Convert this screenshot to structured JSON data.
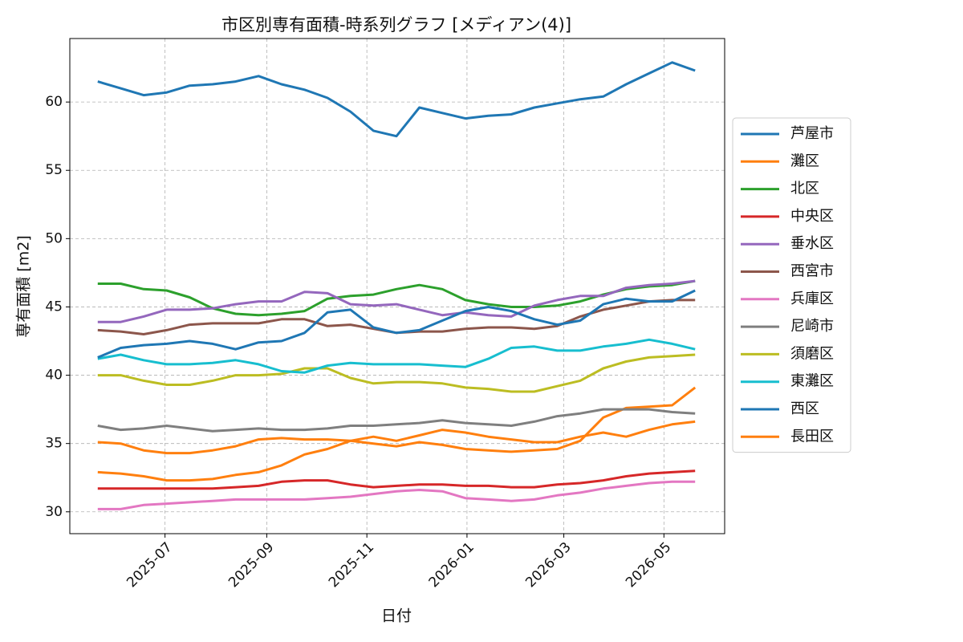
{
  "chart_data": {
    "type": "line",
    "title": "市区別専有面積-時系列グラフ [メディアン(4)]",
    "x_label": "日付",
    "y_label": "専有面積 [m2]",
    "x": [
      "2025-05-21",
      "2025-06-04",
      "2025-06-18",
      "2025-07-02",
      "2025-07-16",
      "2025-07-30",
      "2025-08-13",
      "2025-08-27",
      "2025-09-10",
      "2025-09-24",
      "2025-10-08",
      "2025-10-22",
      "2025-11-05",
      "2025-11-19",
      "2025-12-03",
      "2025-12-17",
      "2025-12-31",
      "2026-01-14",
      "2026-01-28",
      "2026-02-11",
      "2026-02-25",
      "2026-03-11",
      "2026-03-25",
      "2026-04-08",
      "2026-04-22",
      "2026-05-06",
      "2026-05-20"
    ],
    "xlim": [
      "2025-05-04",
      "2026-06-07"
    ],
    "xticks": [
      {
        "value": "2025-07-01",
        "label": "2025-07"
      },
      {
        "value": "2025-09-01",
        "label": "2025-09"
      },
      {
        "value": "2025-11-01",
        "label": "2025-11"
      },
      {
        "value": "2026-01-01",
        "label": "2026-01"
      },
      {
        "value": "2026-03-01",
        "label": "2026-03"
      },
      {
        "value": "2026-05-01",
        "label": "2026-05"
      }
    ],
    "ylim": [
      28.4,
      64.65
    ],
    "yticks": [
      30,
      35,
      40,
      45,
      50,
      55,
      60
    ],
    "grid": true,
    "legend": "right",
    "series": [
      {
        "name": "芦屋市",
        "color": "#1f77b4",
        "values": [
          61.5,
          61.0,
          60.5,
          60.7,
          61.2,
          61.3,
          61.5,
          61.9,
          61.3,
          60.9,
          60.3,
          59.3,
          57.9,
          57.5,
          59.6,
          59.2,
          58.8,
          59.0,
          59.1,
          59.6,
          59.9,
          60.2,
          60.4,
          61.3,
          62.1,
          62.9,
          62.3
        ]
      },
      {
        "name": "灘区",
        "color": "#ff7f0e",
        "values": [
          35.1,
          35.0,
          34.5,
          34.3,
          34.3,
          34.5,
          34.8,
          35.3,
          35.4,
          35.3,
          35.3,
          35.2,
          35.0,
          34.8,
          35.1,
          34.9,
          34.6,
          34.5,
          34.4,
          34.5,
          34.6,
          35.2,
          36.9,
          37.6,
          37.7,
          37.8,
          39.1
        ]
      },
      {
        "name": "北区",
        "color": "#2ca02c",
        "values": [
          46.7,
          46.7,
          46.3,
          46.2,
          45.7,
          44.9,
          44.5,
          44.4,
          44.5,
          44.7,
          45.6,
          45.8,
          45.9,
          46.3,
          46.6,
          46.3,
          45.5,
          45.2,
          45.0,
          45.0,
          45.1,
          45.4,
          45.9,
          46.3,
          46.5,
          46.6,
          46.9
        ]
      },
      {
        "name": "中央区",
        "color": "#d62728",
        "values": [
          31.7,
          31.7,
          31.7,
          31.7,
          31.7,
          31.7,
          31.8,
          31.9,
          32.2,
          32.3,
          32.3,
          32.0,
          31.8,
          31.9,
          32.0,
          32.0,
          31.9,
          31.9,
          31.8,
          31.8,
          32.0,
          32.1,
          32.3,
          32.6,
          32.8,
          32.9,
          33.0
        ]
      },
      {
        "name": "垂水区",
        "color": "#9467bd",
        "values": [
          43.9,
          43.9,
          44.3,
          44.8,
          44.8,
          44.9,
          45.2,
          45.4,
          45.4,
          46.1,
          46.0,
          45.2,
          45.1,
          45.2,
          44.8,
          44.4,
          44.6,
          44.4,
          44.3,
          45.1,
          45.5,
          45.8,
          45.8,
          46.4,
          46.6,
          46.7,
          46.9
        ]
      },
      {
        "name": "西宮市",
        "color": "#8c564b",
        "values": [
          43.3,
          43.2,
          43.0,
          43.3,
          43.7,
          43.8,
          43.8,
          43.8,
          44.1,
          44.1,
          43.6,
          43.7,
          43.4,
          43.1,
          43.2,
          43.2,
          43.4,
          43.5,
          43.5,
          43.4,
          43.6,
          44.3,
          44.8,
          45.1,
          45.4,
          45.5,
          45.5
        ]
      },
      {
        "name": "兵庫区",
        "color": "#e377c2",
        "values": [
          30.2,
          30.2,
          30.5,
          30.6,
          30.7,
          30.8,
          30.9,
          30.9,
          30.9,
          30.9,
          31.0,
          31.1,
          31.3,
          31.5,
          31.6,
          31.5,
          31.0,
          30.9,
          30.8,
          30.9,
          31.2,
          31.4,
          31.7,
          31.9,
          32.1,
          32.2,
          32.2
        ]
      },
      {
        "name": "尼崎市",
        "color": "#7f7f7f",
        "values": [
          36.3,
          36.0,
          36.1,
          36.3,
          36.1,
          35.9,
          36.0,
          36.1,
          36.0,
          36.0,
          36.1,
          36.3,
          36.3,
          36.4,
          36.5,
          36.7,
          36.5,
          36.4,
          36.3,
          36.6,
          37.0,
          37.2,
          37.5,
          37.5,
          37.5,
          37.3,
          37.2
        ]
      },
      {
        "name": "須磨区",
        "color": "#bcbd22",
        "values": [
          40.0,
          40.0,
          39.6,
          39.3,
          39.3,
          39.6,
          40.0,
          40.0,
          40.1,
          40.5,
          40.5,
          39.8,
          39.4,
          39.5,
          39.5,
          39.4,
          39.1,
          39.0,
          38.8,
          38.8,
          39.2,
          39.6,
          40.5,
          41.0,
          41.3,
          41.4,
          41.5
        ]
      },
      {
        "name": "東灘区",
        "color": "#17becf",
        "values": [
          41.2,
          41.5,
          41.1,
          40.8,
          40.8,
          40.9,
          41.1,
          40.8,
          40.3,
          40.2,
          40.7,
          40.9,
          40.8,
          40.8,
          40.8,
          40.7,
          40.6,
          41.2,
          42.0,
          42.1,
          41.8,
          41.8,
          42.1,
          42.3,
          42.6,
          42.3,
          41.9
        ]
      },
      {
        "name": "西区",
        "color": "#1f77b4",
        "values": [
          41.3,
          42.0,
          42.2,
          42.3,
          42.5,
          42.3,
          41.9,
          42.4,
          42.5,
          43.1,
          44.6,
          44.8,
          43.5,
          43.1,
          43.3,
          44.0,
          44.7,
          45.0,
          44.7,
          44.1,
          43.7,
          44.0,
          45.2,
          45.6,
          45.4,
          45.4,
          46.2
        ]
      },
      {
        "name": "長田区",
        "color": "#ff7f0e",
        "values": [
          32.9,
          32.8,
          32.6,
          32.3,
          32.3,
          32.4,
          32.7,
          32.9,
          33.4,
          34.2,
          34.6,
          35.2,
          35.5,
          35.2,
          35.6,
          36.0,
          35.8,
          35.5,
          35.3,
          35.1,
          35.1,
          35.5,
          35.8,
          35.5,
          36.0,
          36.4,
          36.6
        ]
      }
    ]
  }
}
